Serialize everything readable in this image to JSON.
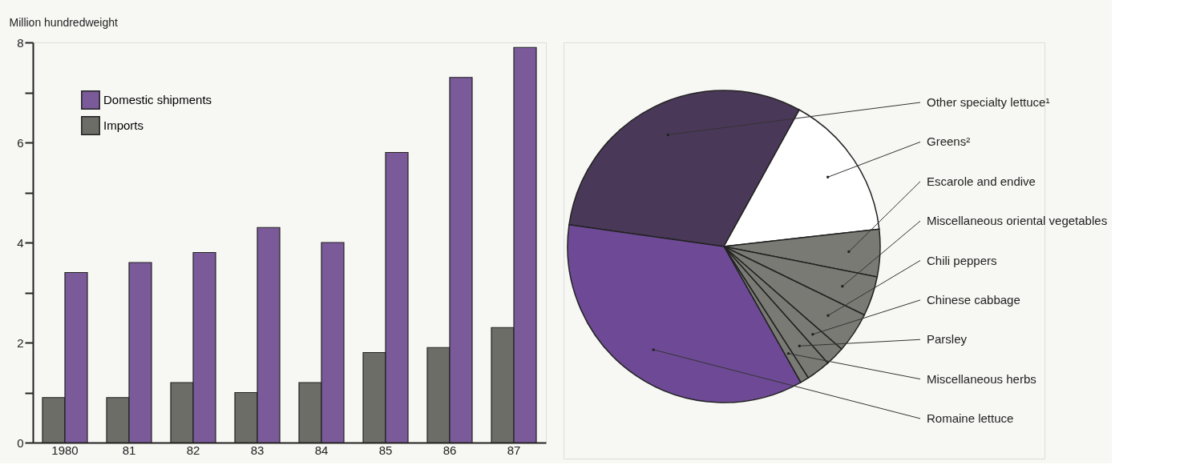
{
  "chart_data": [
    {
      "type": "bar",
      "ylabel": "Million hundredweight",
      "categories": [
        "1980",
        "81",
        "82",
        "83",
        "84",
        "85",
        "86",
        "87"
      ],
      "series": [
        {
          "name": "Imports",
          "color": "#6b6d66",
          "values": [
            0.9,
            0.9,
            1.2,
            1.0,
            1.2,
            1.8,
            1.9,
            2.3
          ]
        },
        {
          "name": "Domestic shipments",
          "color": "#7b5a9a",
          "values": [
            3.4,
            3.6,
            3.8,
            4.3,
            4.0,
            5.8,
            7.3,
            7.9
          ]
        }
      ],
      "ylim": [
        0,
        8
      ],
      "yticks": [
        0,
        {
          "value": 1,
          "label": null
        },
        2,
        {
          "value": 3,
          "label": null
        },
        4,
        {
          "value": 5,
          "label": null
        },
        6,
        {
          "value": 7,
          "label": null
        },
        8
      ],
      "legend": "top left",
      "grid": false
    },
    {
      "type": "pie",
      "categories": [
        "Other specialty lettuce¹",
        "Greens²",
        "Escarole and endive",
        "Miscellaneous oriental vegetables",
        "Chili peppers",
        "Chinese cabbage",
        "Parsley",
        "Miscellaneous herbs",
        "Romaine lettuce"
      ],
      "values": [
        30.8,
        15.2,
        4.9,
        4.1,
        4.2,
        2.0,
        2.5,
        0.9,
        35.4
      ],
      "colors": [
        "#4a3858",
        "#ffffff",
        "#7a7a74",
        "#7a7a74",
        "#7a7a74",
        "#7a7a74",
        "#7a7a74",
        "#7a7a74",
        "#6e4a96"
      ]
    }
  ]
}
